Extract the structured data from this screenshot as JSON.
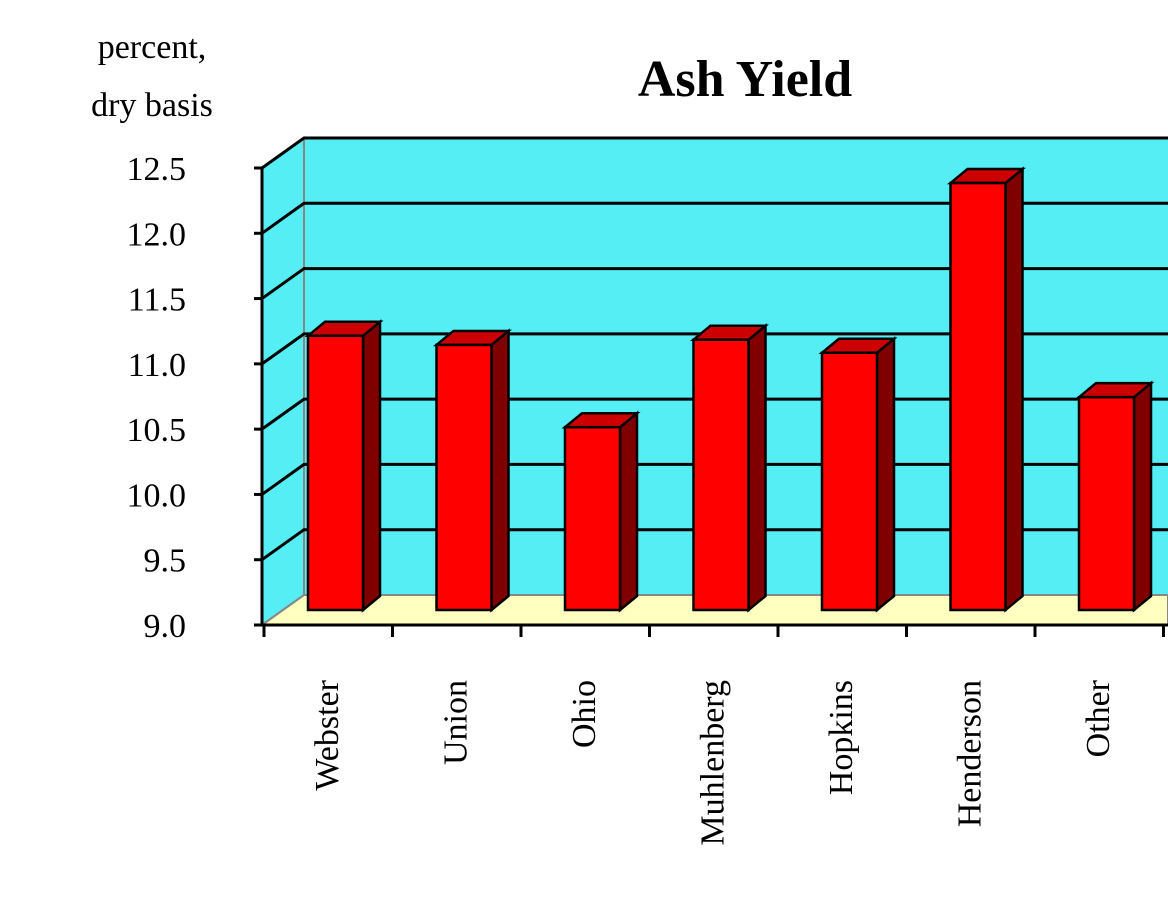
{
  "chart_data": {
    "type": "bar",
    "title": "Ash Yield",
    "ylabel_lines": [
      "percent,",
      "dry basis"
    ],
    "xlabel": "",
    "categories": [
      "Webster",
      "Union",
      "Ohio",
      "Muhlenberg",
      "Hopkins",
      "Henderson",
      "Other"
    ],
    "values": [
      11.1,
      11.03,
      10.4,
      11.07,
      10.97,
      12.27,
      10.63
    ],
    "ylim": [
      9.0,
      12.5
    ],
    "yticks": [
      "9.0",
      "9.5",
      "10.0",
      "10.5",
      "11.0",
      "11.5",
      "12.0",
      "12.5"
    ],
    "grid": true,
    "style": "3d",
    "colors": {
      "bar_front": "#ff0000",
      "bar_top": "#cc0000",
      "bar_side": "#800000",
      "wall": "#55eef4",
      "floor": "#ffffc0"
    }
  }
}
